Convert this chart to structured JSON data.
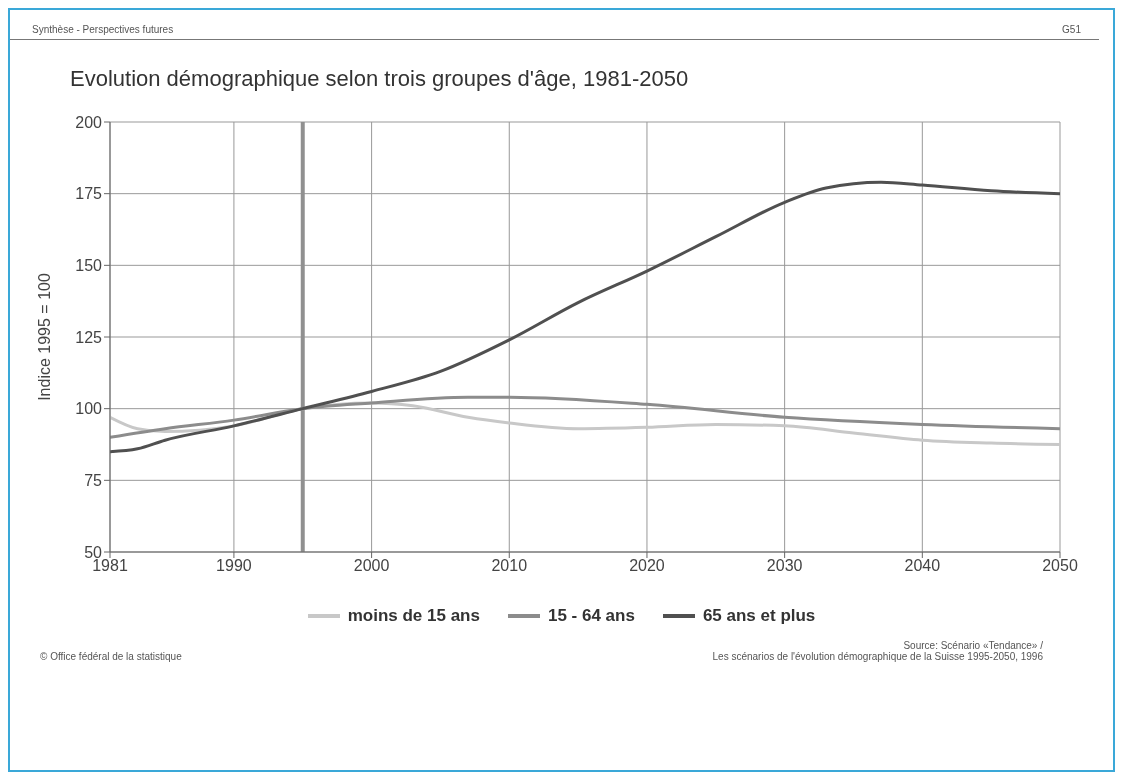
{
  "chart_data": {
    "type": "line",
    "title": "Evolution démographique selon trois groupes d'âge, 1981-2050",
    "ylabel": "Indice 1995 = 100",
    "annotations": [
      "Synthèse - Perspectives futures",
      "G51",
      "© Office fédéral de la statistique",
      "Source: Scénario «Tendance» /",
      "Les scénarios de l'évolution démographique de la Suisse 1995-2050, 1996"
    ],
    "xlim": [
      1981,
      2050
    ],
    "xticks": [
      1981,
      1990,
      2000,
      2010,
      2020,
      2030,
      2040,
      2050
    ],
    "ylim": [
      50,
      200
    ],
    "yticks": [
      50,
      75,
      100,
      125,
      150,
      175,
      200
    ],
    "grid": true,
    "legend": "bottom",
    "marker": "none",
    "line_style": "solid",
    "ref_lines": [
      {
        "axis": "x",
        "value": 1995,
        "color": "#909090"
      }
    ],
    "series": [
      {
        "name": "moins de 15 ans",
        "color": "#c8c8c8",
        "x": [
          1981,
          1983,
          1985,
          1990,
          1995,
          2000,
          2003,
          2007,
          2010,
          2015,
          2020,
          2025,
          2030,
          2035,
          2040,
          2045,
          2050
        ],
        "values": [
          97,
          93,
          92,
          94,
          100,
          102,
          101,
          97,
          95,
          93,
          93.5,
          94.5,
          94,
          91.5,
          89,
          88,
          87.5
        ]
      },
      {
        "name": "15 - 64 ans",
        "color": "#8c8c8c",
        "x": [
          1981,
          1985,
          1990,
          1995,
          2000,
          2007,
          2010,
          2020,
          2030,
          2040,
          2050
        ],
        "values": [
          90,
          93,
          96,
          100,
          102,
          104,
          104,
          101.5,
          97,
          94.5,
          93
        ]
      },
      {
        "name": "65 ans et plus",
        "color": "#505050",
        "x": [
          1981,
          1983,
          1985,
          1990,
          1995,
          2000,
          2005,
          2010,
          2015,
          2020,
          2025,
          2030,
          2033,
          2037,
          2040,
          2045,
          2050
        ],
        "values": [
          85,
          86,
          89,
          94,
          100,
          106,
          113,
          124,
          137,
          148,
          160,
          172,
          177,
          179,
          178,
          176,
          175
        ]
      }
    ]
  }
}
